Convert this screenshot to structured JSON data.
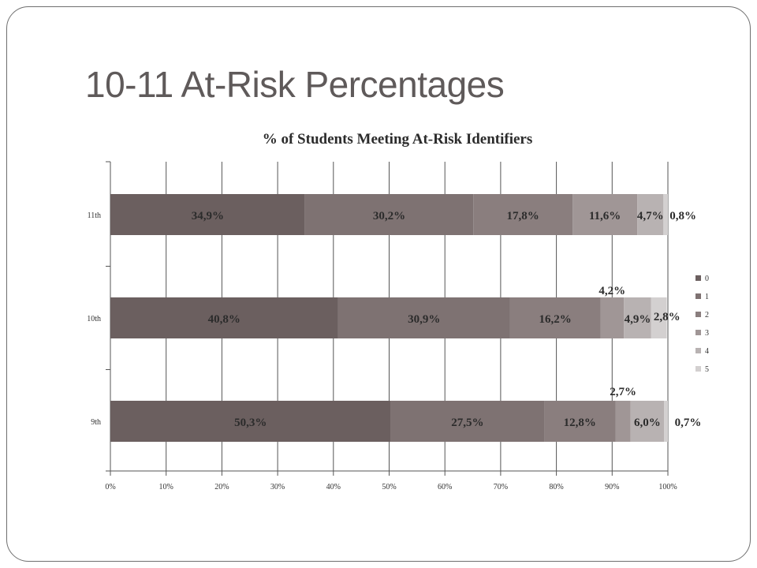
{
  "slide": {
    "title": "10-11 At-Risk Percentages"
  },
  "chart_data": {
    "type": "bar",
    "orientation": "horizontal",
    "stacked": true,
    "title": "% of Students Meeting At-Risk Identifiers",
    "xlabel": "",
    "ylabel": "",
    "xlim": [
      0,
      100
    ],
    "x_ticks": [
      "0%",
      "10%",
      "20%",
      "30%",
      "40%",
      "50%",
      "60%",
      "70%",
      "80%",
      "90%",
      "100%"
    ],
    "grid": true,
    "legend_position": "right",
    "categories": [
      "11th",
      "10th",
      "9th"
    ],
    "series": [
      {
        "name": "0",
        "color": "#6b5f5f",
        "values": [
          34.9,
          40.8,
          50.3
        ],
        "labels": [
          "34,9%",
          "40,8%",
          "50,3%"
        ]
      },
      {
        "name": "1",
        "color": "#7e7272",
        "values": [
          30.2,
          30.9,
          27.5
        ],
        "labels": [
          "30,2%",
          "30,9%",
          "27,5%"
        ]
      },
      {
        "name": "2",
        "color": "#8a7e7e",
        "values": [
          17.8,
          16.2,
          12.8
        ],
        "labels": [
          "17,8%",
          "16,2%",
          "12,8%"
        ]
      },
      {
        "name": "3",
        "color": "#a09696",
        "values": [
          11.6,
          4.2,
          2.7
        ],
        "labels": [
          "11,6%",
          "4,2%",
          "2,7%"
        ]
      },
      {
        "name": "4",
        "color": "#b8b2b2",
        "values": [
          4.7,
          4.9,
          6.0
        ],
        "labels": [
          "4,7%",
          "4,9%",
          "6,0%"
        ]
      },
      {
        "name": "5",
        "color": "#d3d0d0",
        "values": [
          0.8,
          2.8,
          0.7
        ],
        "labels": [
          "0,8%",
          "2,8%",
          "0,7%"
        ]
      }
    ]
  }
}
